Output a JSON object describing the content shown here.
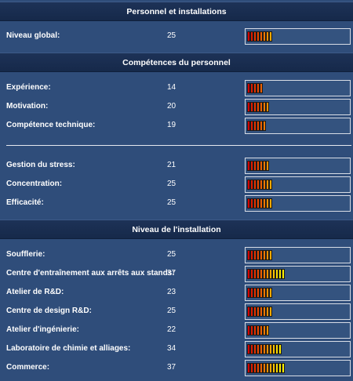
{
  "sections": {
    "personnel": {
      "title": "Personnel et installations"
    },
    "skills": {
      "title": "Compétences du personnel"
    },
    "facility": {
      "title": "Niveau de l'installation"
    }
  },
  "rows": {
    "global": {
      "label": "Niveau global:",
      "value": "25"
    },
    "experience": {
      "label": "Expérience:",
      "value": "14"
    },
    "motivation": {
      "label": "Motivation:",
      "value": "20"
    },
    "technical": {
      "label": "Compétence technique:",
      "value": "19"
    },
    "stress": {
      "label": "Gestion du stress:",
      "value": "21"
    },
    "concentration": {
      "label": "Concentration:",
      "value": "25"
    },
    "efficiency": {
      "label": "Efficacité:",
      "value": "25"
    },
    "wind_tunnel": {
      "label": "Soufflerie:",
      "value": "25"
    },
    "pitstop_training": {
      "label": "Centre d'entraînement aux arrêts aux stands:",
      "value": "37"
    },
    "rnd_workshop": {
      "label": "Atelier de R&D:",
      "value": "23"
    },
    "rnd_design": {
      "label": "Centre de design R&D:",
      "value": "25"
    },
    "engineering": {
      "label": "Atelier d'ingénierie:",
      "value": "22"
    },
    "chem_lab": {
      "label": "Laboratoire de chimie et alliages:",
      "value": "34"
    },
    "commerce": {
      "label": "Commerce:",
      "value": "37"
    }
  },
  "colors": {
    "background": "#2f4d7a",
    "header": "#1a2e52",
    "segment_scale": [
      "#d40000",
      "#dd1a00",
      "#e33000",
      "#e84800",
      "#ec6000",
      "#f07800",
      "#f39000",
      "#f5a800",
      "#f7c000",
      "#f9d800",
      "#fbee00"
    ]
  }
}
